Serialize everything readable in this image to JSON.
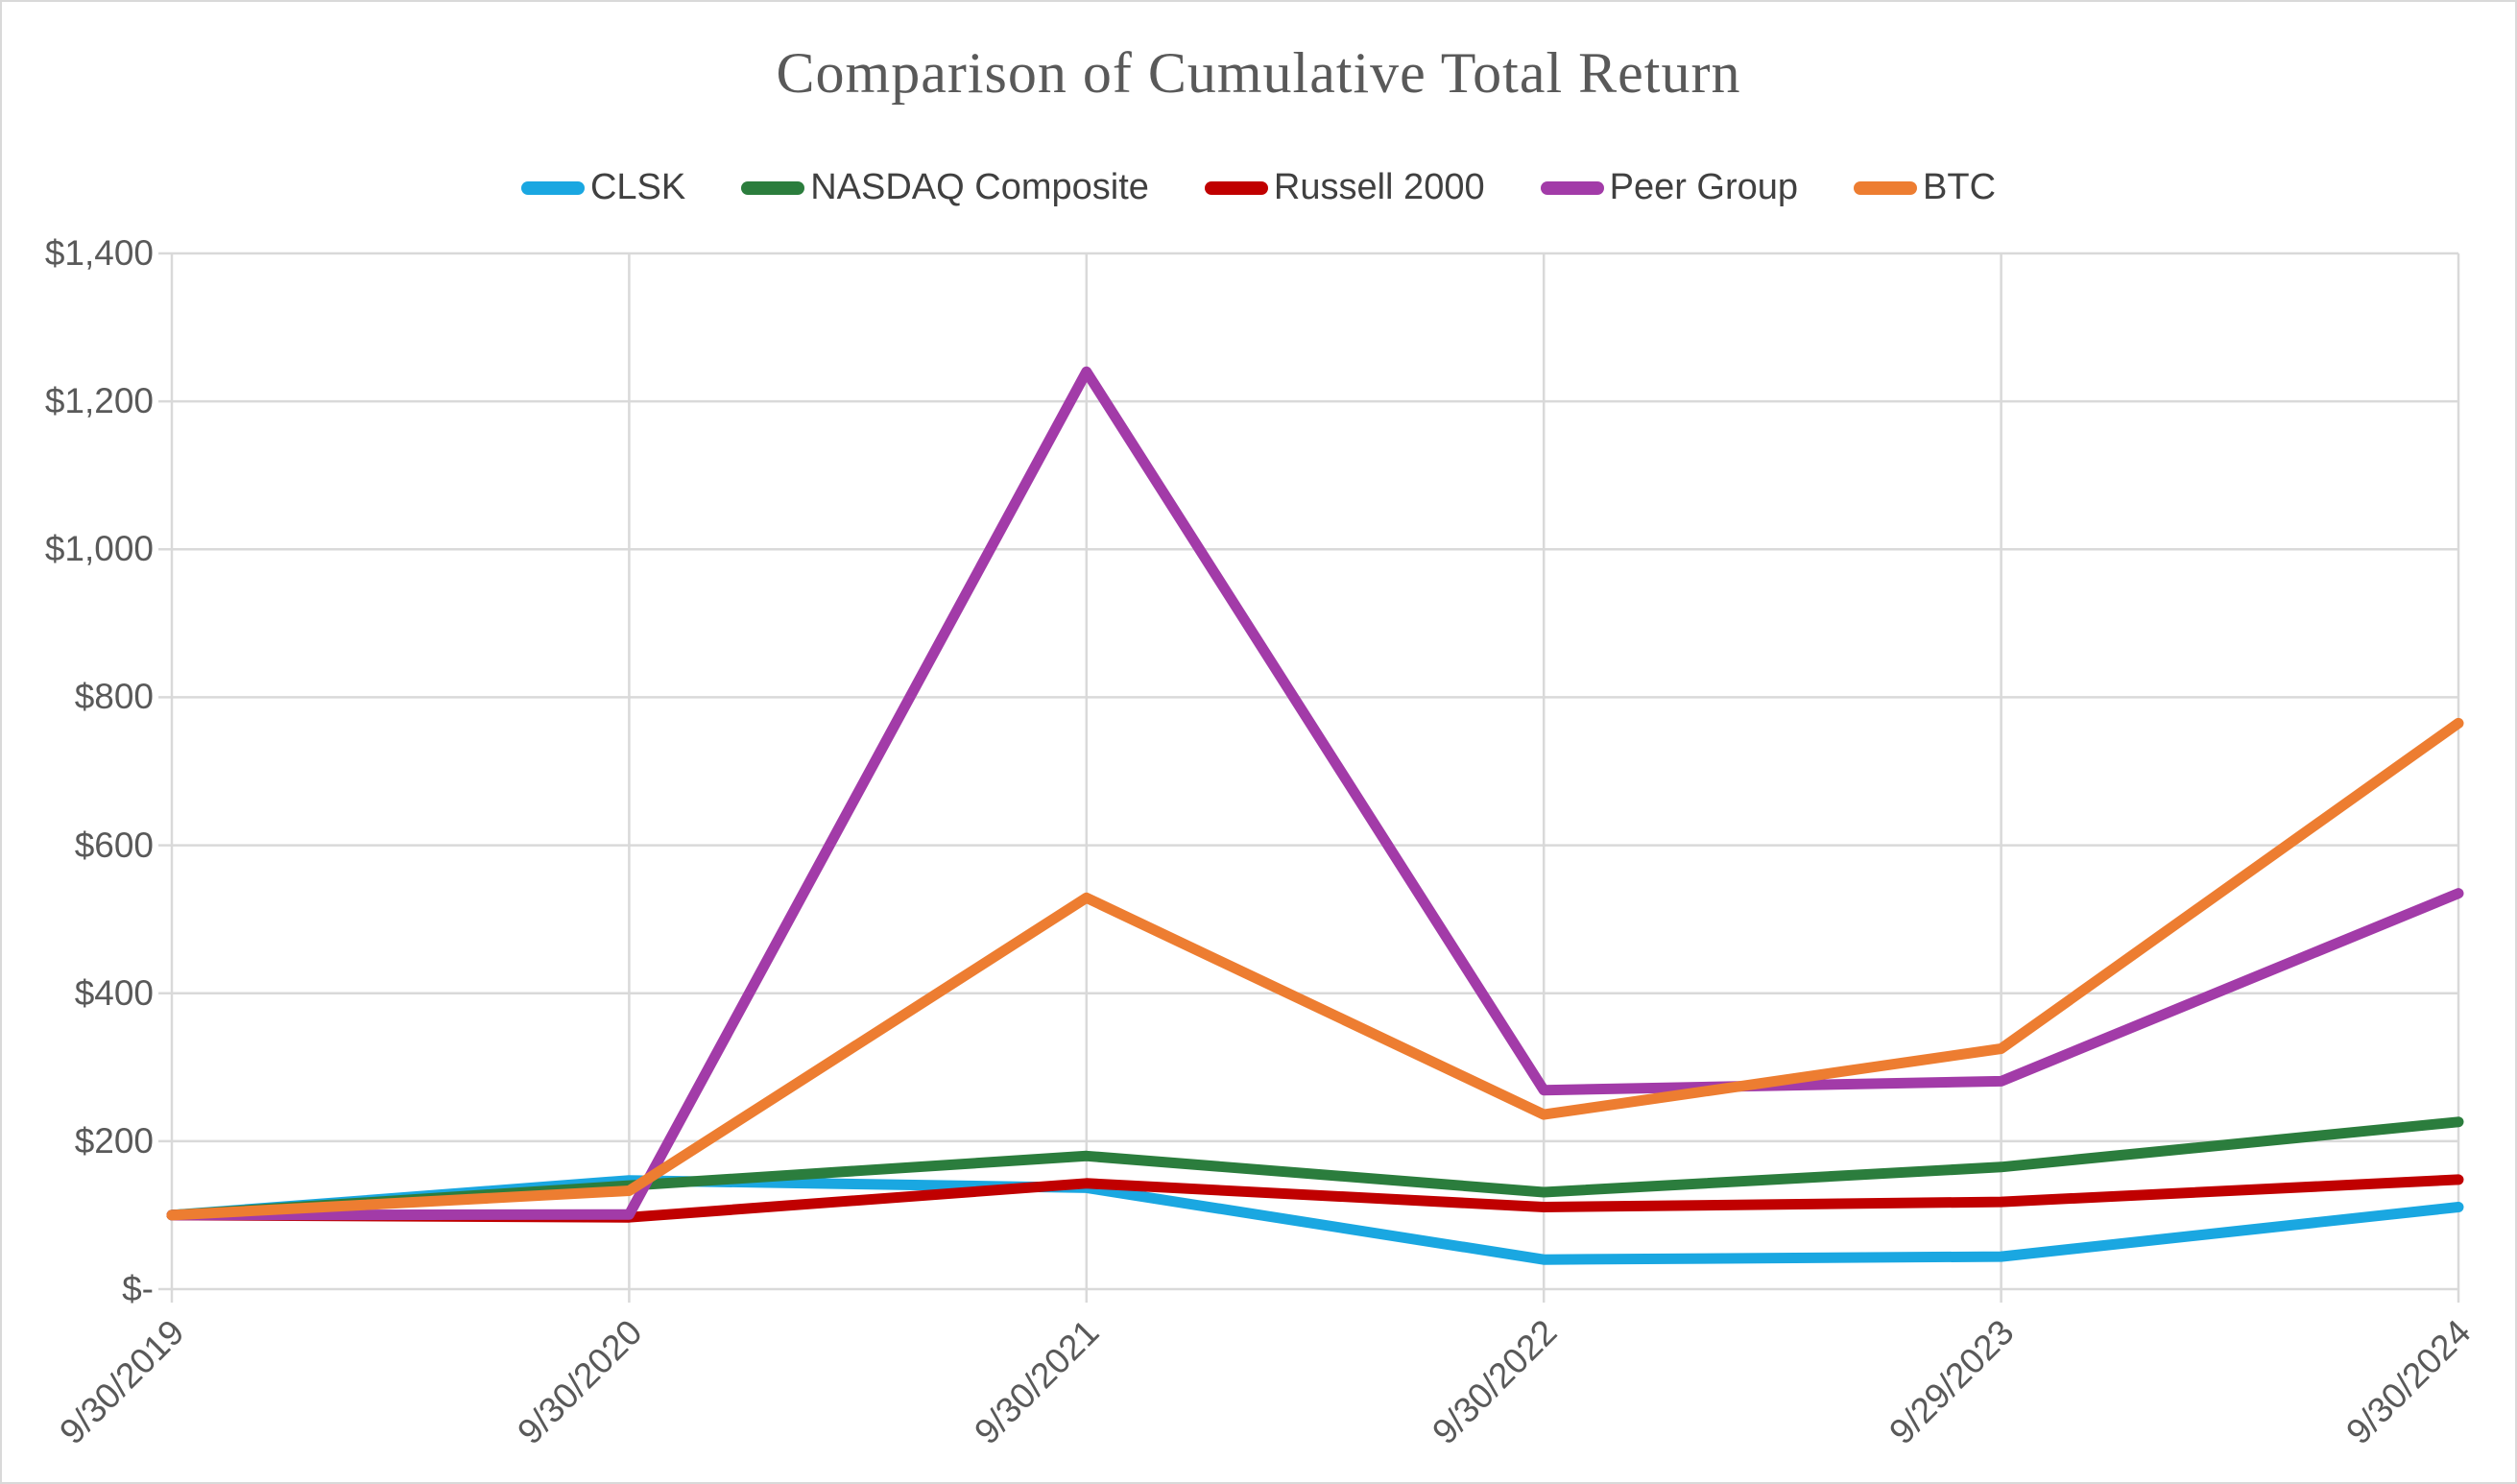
{
  "title": "Comparison of Cumulative Total Return",
  "styles": {
    "gridline_color": "#d9d9d9",
    "axis_text_color": "#595959",
    "title_color": "#595959",
    "background_color": "#ffffff"
  },
  "chart_data": {
    "type": "line",
    "title": "Comparison of Cumulative Total Return",
    "categories": [
      "9/30/2019",
      "9/30/2020",
      "9/30/2021",
      "9/30/2022",
      "9/29/2023",
      "9/30/2024"
    ],
    "series": [
      {
        "name": "CLSK",
        "color": "#1aa7e1",
        "values": [
          100,
          147,
          137,
          40,
          44,
          111
        ]
      },
      {
        "name": "NASDAQ Composite",
        "color": "#2b7d3d",
        "values": [
          100,
          140,
          180,
          131,
          165,
          226
        ]
      },
      {
        "name": "Russell 2000",
        "color": "#c00000",
        "values": [
          100,
          97,
          143,
          111,
          118,
          148
        ]
      },
      {
        "name": "Peer Group",
        "color": "#a23ba8",
        "values": [
          100,
          101,
          1240,
          269,
          281,
          535
        ]
      },
      {
        "name": "BTC",
        "color": "#ed7d31",
        "values": [
          100,
          133,
          529,
          236,
          325,
          765
        ]
      }
    ],
    "xlabel": "",
    "ylabel": "",
    "ylim": [
      0,
      1400
    ],
    "ytick_step": 200,
    "ytick_labels": [
      "$-",
      "$200",
      "$400",
      "$600",
      "$800",
      "$1,000",
      "$1,200",
      "$1,400"
    ],
    "grid": true,
    "legend_position": "top",
    "x_label_rotation_deg": 45
  }
}
